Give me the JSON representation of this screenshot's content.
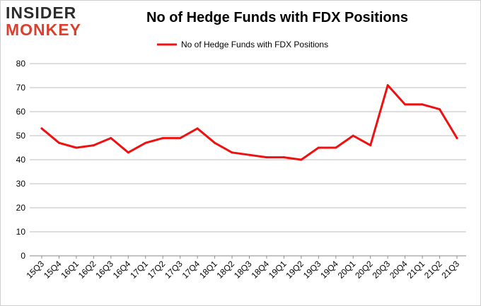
{
  "logo": {
    "line1": "INSIDER",
    "line2": "MONKEY"
  },
  "chart_data": {
    "type": "line",
    "title": "No of Hedge Funds with FDX Positions",
    "xlabel": "",
    "ylabel": "",
    "ylim": [
      0,
      80
    ],
    "yticks": [
      0,
      10,
      20,
      30,
      40,
      50,
      60,
      70,
      80
    ],
    "grid": true,
    "legend_position": "top",
    "categories": [
      "15Q3",
      "15Q4",
      "16Q1",
      "16Q2",
      "16Q3",
      "16Q4",
      "17Q1",
      "17Q2",
      "17Q3",
      "17Q4",
      "18Q1",
      "18Q2",
      "18Q3",
      "18Q4",
      "19Q1",
      "19Q2",
      "19Q3",
      "19Q4",
      "20Q1",
      "20Q2",
      "20Q3",
      "20Q4",
      "21Q1",
      "21Q2",
      "21Q3"
    ],
    "series": [
      {
        "name": "No of Hedge Funds with FDX Positions",
        "color": "#ee1111",
        "values": [
          53,
          47,
          45,
          46,
          49,
          43,
          47,
          49,
          49,
          53,
          47,
          43,
          42,
          41,
          41,
          40,
          45,
          45,
          50,
          46,
          71,
          63,
          63,
          61,
          49
        ]
      }
    ]
  }
}
